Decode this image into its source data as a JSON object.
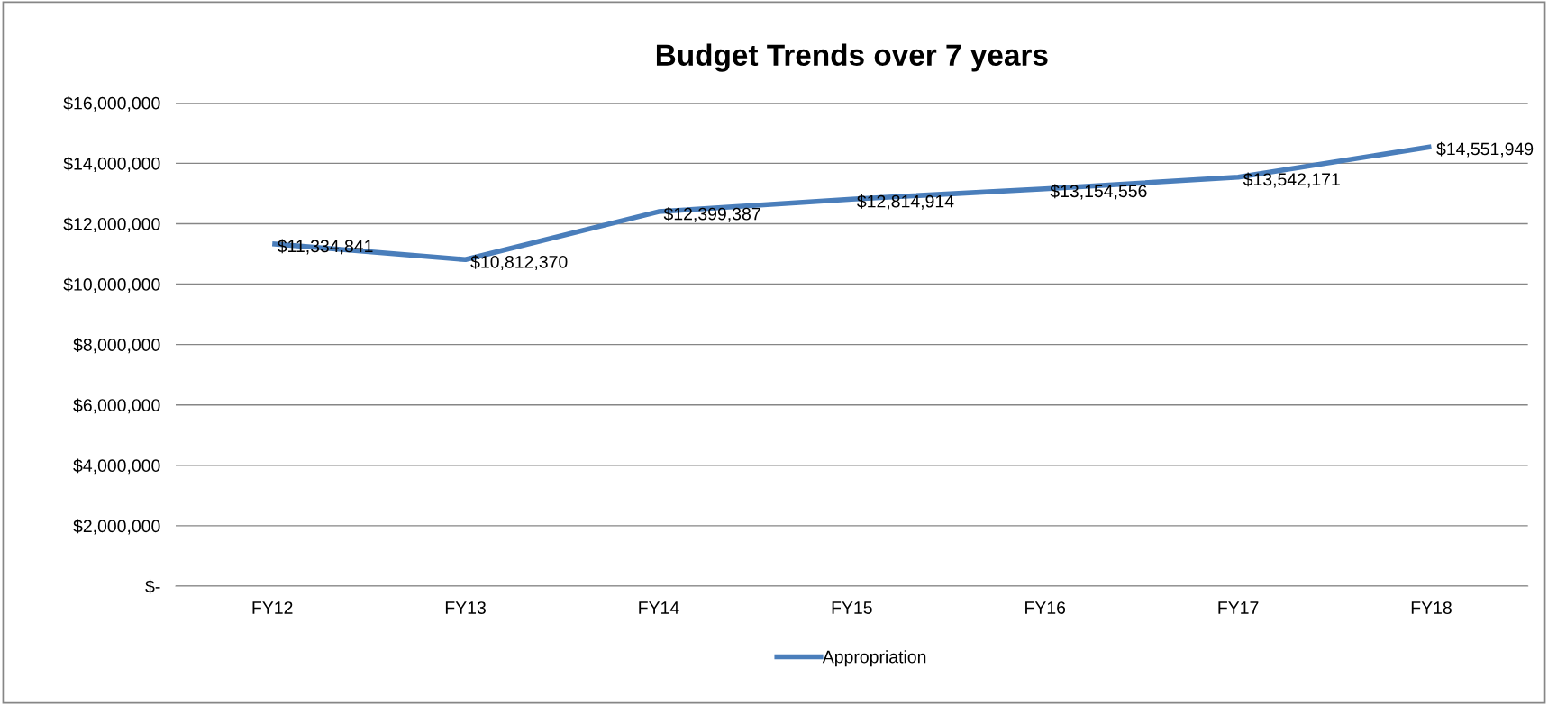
{
  "chart_data": {
    "type": "line",
    "title": "Budget Trends over 7 years",
    "categories": [
      "FY12",
      "FY13",
      "FY14",
      "FY15",
      "FY16",
      "FY17",
      "FY18"
    ],
    "series": [
      {
        "name": "Appropriation",
        "color": "#4a7ebb",
        "values": [
          11334841,
          10812370,
          12399387,
          12814914,
          13154556,
          13542171,
          14551949
        ],
        "value_labels": [
          "$11,334,841",
          "$10,812,370",
          "$12,399,387",
          "$12,814,914",
          "$13,154,556",
          "$13,542,171",
          "$14,551,949"
        ]
      }
    ],
    "ylim": [
      0,
      16000000
    ],
    "yticks": [
      {
        "value": 0,
        "label": "$-"
      },
      {
        "value": 2000000,
        "label": "$2,000,000"
      },
      {
        "value": 4000000,
        "label": "$4,000,000"
      },
      {
        "value": 6000000,
        "label": "$6,000,000"
      },
      {
        "value": 8000000,
        "label": "$8,000,000"
      },
      {
        "value": 10000000,
        "label": "$10,000,000"
      },
      {
        "value": 12000000,
        "label": "$12,000,000"
      },
      {
        "value": 14000000,
        "label": "$14,000,000"
      },
      {
        "value": 16000000,
        "label": "$16,000,000"
      }
    ],
    "grid": "y",
    "legend": "bottom",
    "marker": "none",
    "line_style": "solid"
  }
}
